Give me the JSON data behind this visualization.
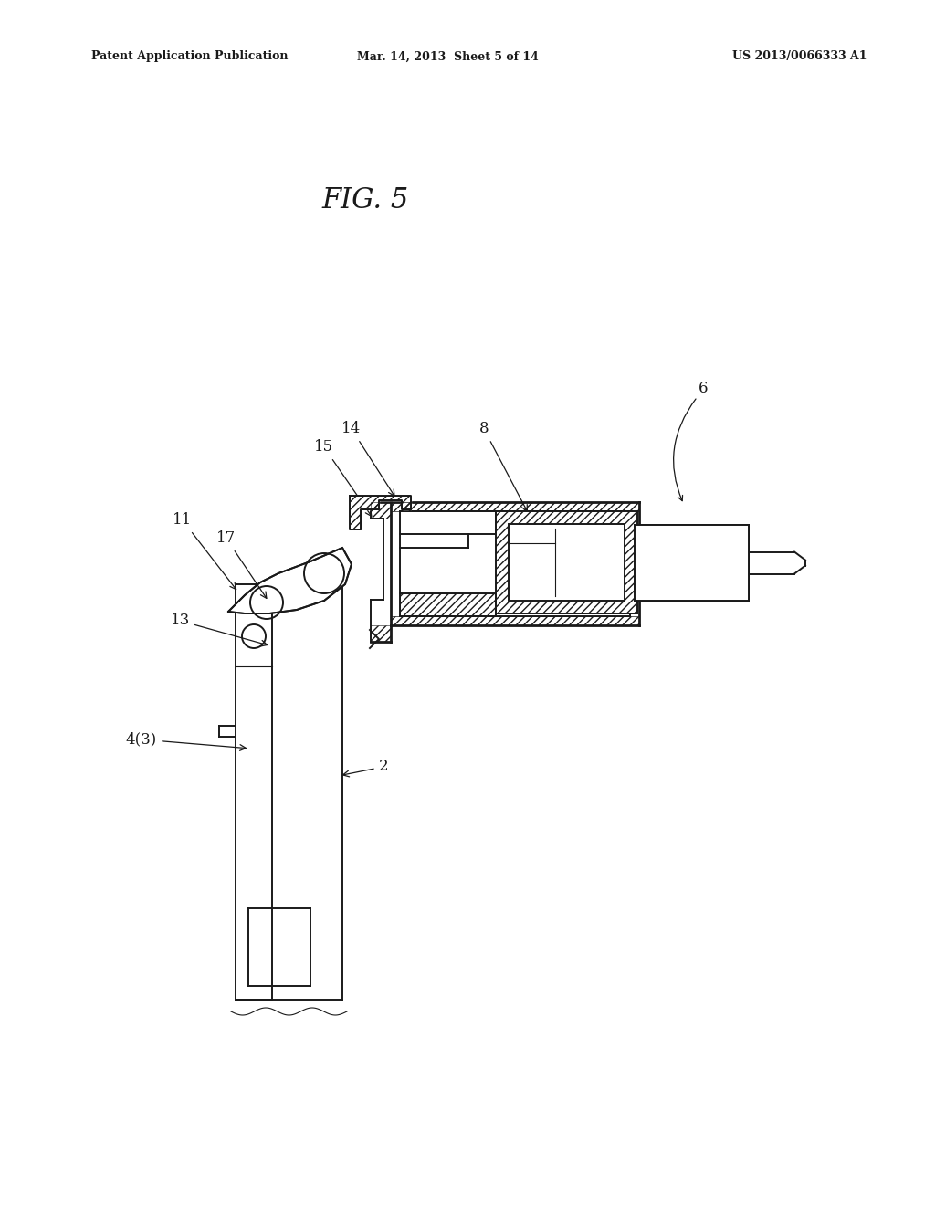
{
  "bg_color": "#ffffff",
  "lc": "#1a1a1a",
  "header_left": "Patent Application Publication",
  "header_mid": "Mar. 14, 2013  Sheet 5 of 14",
  "header_right": "US 2013/0066333 A1",
  "fig_title": "FIG. 5",
  "lw": 1.4,
  "lw_thin": 0.8,
  "lw_bold": 2.0
}
